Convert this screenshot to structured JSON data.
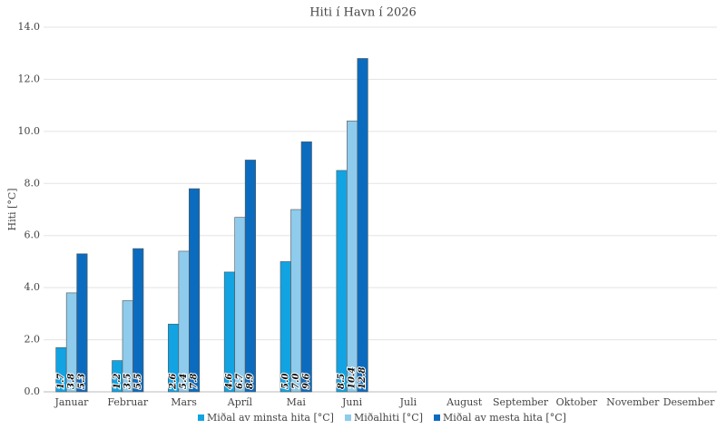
{
  "chart_data": {
    "type": "bar",
    "title": "Hiti í Havn í 2026",
    "y_label": "Hiti [°C]",
    "categories": [
      "Januar",
      "Februar",
      "Mars",
      "Apríl",
      "Mai",
      "Juni",
      "Juli",
      "August",
      "September",
      "Oktober",
      "November",
      "Desember"
    ],
    "series": [
      {
        "name": "Miðal av minsta hita [°C]",
        "color": "#12a3e3",
        "values": [
          1.7,
          1.2,
          2.6,
          4.6,
          5.0,
          8.5,
          null,
          null,
          null,
          null,
          null,
          null
        ],
        "value_labels": [
          "1.7",
          "1.2",
          "2.6",
          "4.6",
          "5.0",
          "8.5",
          null,
          null,
          null,
          null,
          null,
          null
        ]
      },
      {
        "name": "Miðalhiti [°C]",
        "color": "#8ecbec",
        "values": [
          3.8,
          3.5,
          5.4,
          6.7,
          7.0,
          10.4,
          null,
          null,
          null,
          null,
          null,
          null
        ],
        "value_labels": [
          "3.8",
          "3.5",
          "5.4",
          "6.7",
          "7.0",
          "10.4",
          null,
          null,
          null,
          null,
          null,
          null
        ]
      },
      {
        "name": "Miðal av mesta hita [°C]",
        "color": "#0b6cbf",
        "values": [
          5.3,
          5.5,
          7.8,
          8.9,
          9.6,
          12.8,
          null,
          null,
          null,
          null,
          null,
          null
        ],
        "value_labels": [
          "5.3",
          "5.5",
          "7.8",
          "8.9",
          "9.6",
          "12.8",
          null,
          null,
          null,
          null,
          null,
          null
        ]
      }
    ],
    "ylim": [
      0,
      14
    ],
    "yticks": [
      {
        "value": 0,
        "label": "0.0"
      },
      {
        "value": 2,
        "label": "2.0"
      },
      {
        "value": 4,
        "label": "4.0"
      },
      {
        "value": 6,
        "label": "6.0"
      },
      {
        "value": 8,
        "label": "8.0"
      },
      {
        "value": 10,
        "label": "10.0"
      },
      {
        "value": 12,
        "label": "12.0"
      },
      {
        "value": 14,
        "label": "14.0"
      }
    ],
    "grid": true
  }
}
